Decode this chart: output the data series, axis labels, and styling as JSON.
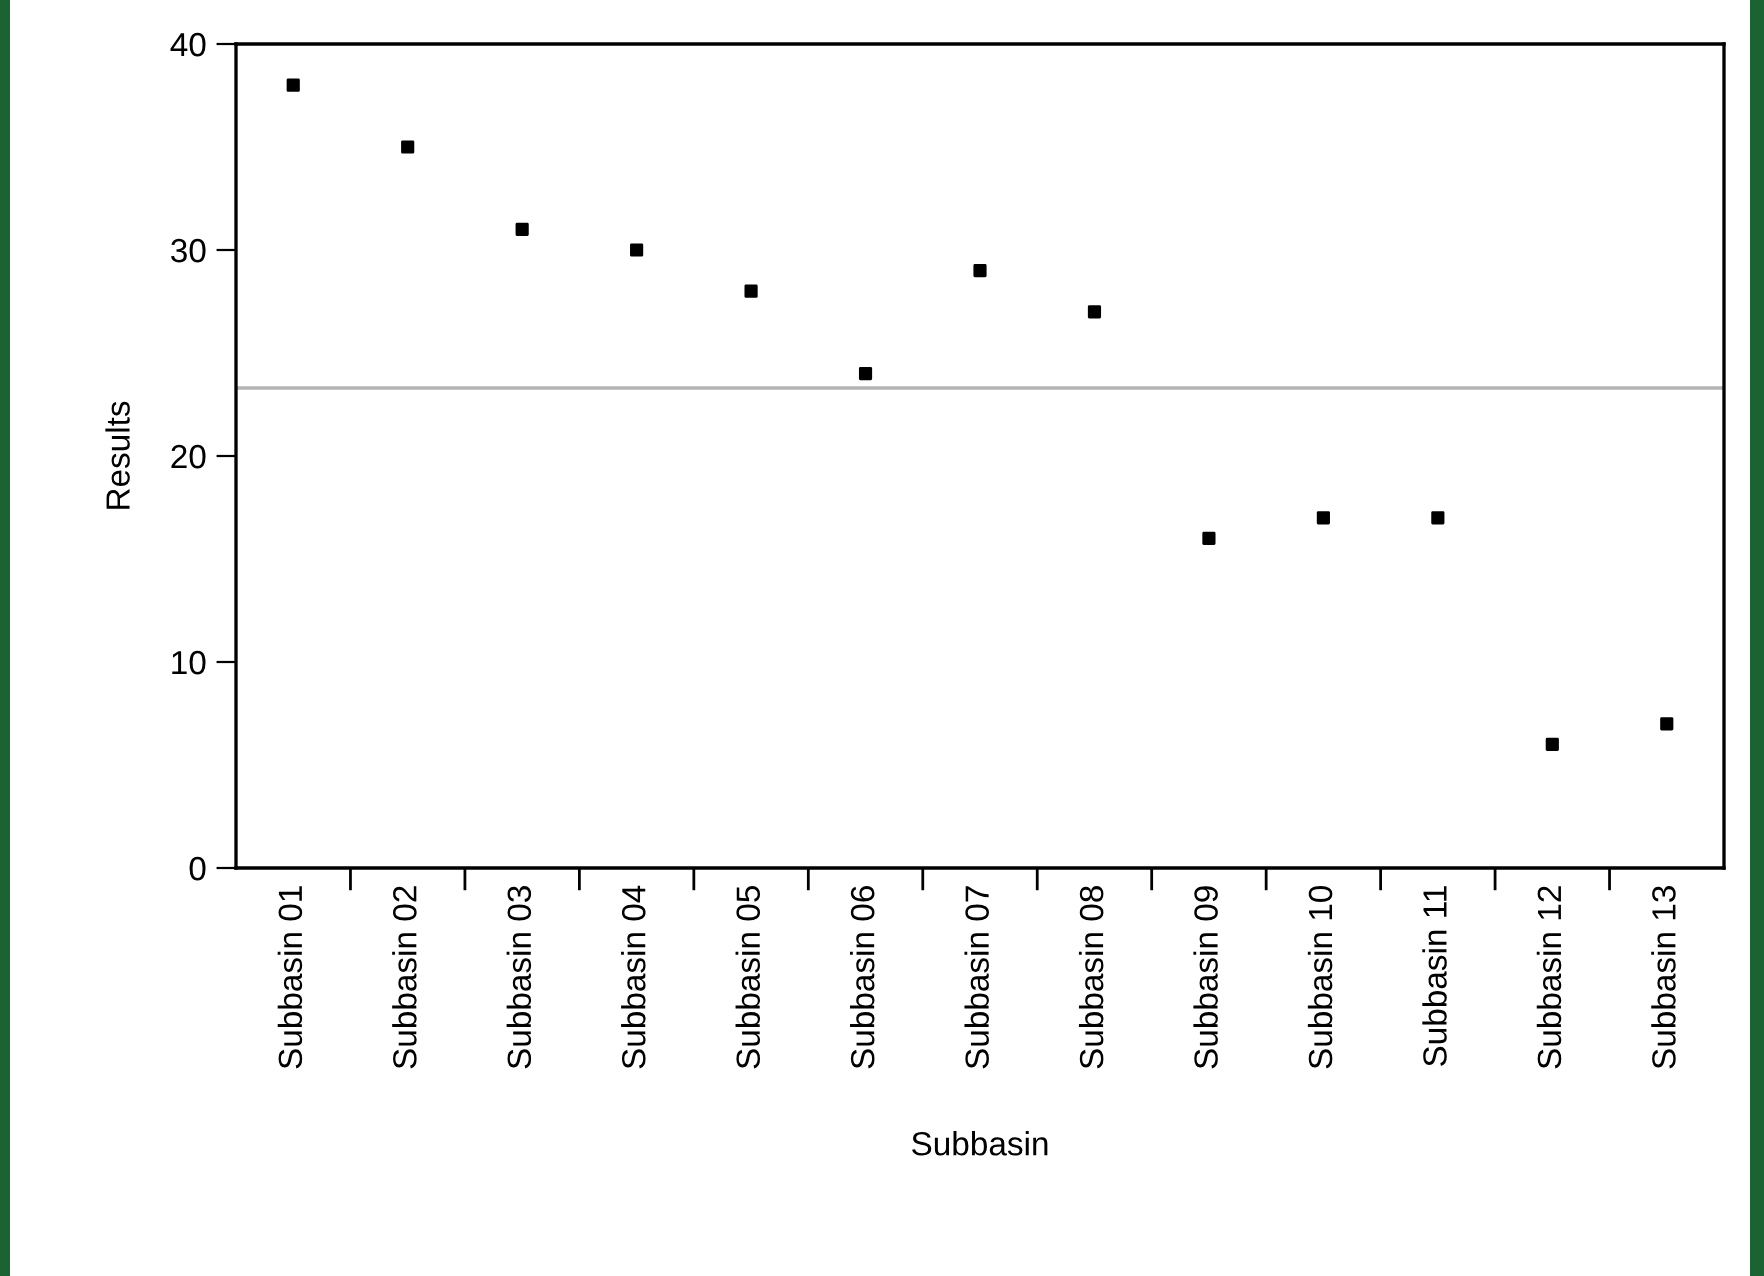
{
  "chart_data": {
    "type": "scatter",
    "xlabel": "Subbasin",
    "ylabel": "Results",
    "categories": [
      "Subbasin 01",
      "Subbasin 02",
      "Subbasin 03",
      "Subbasin 04",
      "Subbasin 05",
      "Subbasin 06",
      "Subbasin 07",
      "Subbasin 08",
      "Subbasin 09",
      "Subbasin 10",
      "Subbasin 11",
      "Subbasin 12",
      "Subbasin 13"
    ],
    "series": [
      {
        "color": "#000000",
        "values": [
          38,
          35,
          31,
          30,
          28,
          24,
          29,
          27,
          16,
          17,
          17,
          6,
          7
        ]
      }
    ],
    "marker": "square",
    "ylim": [
      0,
      40
    ],
    "yticks": [
      0,
      10,
      20,
      30,
      40
    ],
    "ref_lines": [
      {
        "axis": "y",
        "value": 23.3,
        "color": "#b4b4b4"
      }
    ],
    "grid": false,
    "legend": false
  }
}
